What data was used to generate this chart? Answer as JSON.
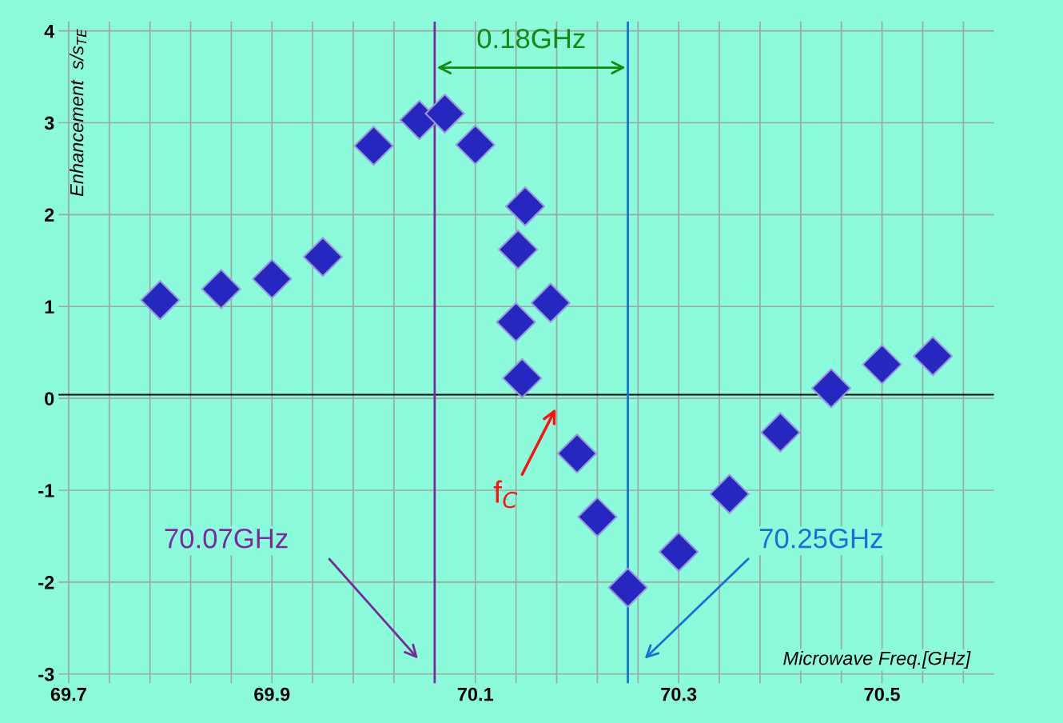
{
  "chart_data": {
    "type": "scatter",
    "xlabel": "Microwave Freq.[GHz]",
    "ylabel": "Enhancement  s/s$_{TE}$",
    "x": [
      69.79,
      69.85,
      69.9,
      69.95,
      70.0,
      70.045,
      70.07,
      70.1,
      70.149,
      70.142,
      70.174,
      70.14,
      70.146,
      70.2,
      70.22,
      70.25,
      70.3,
      70.35,
      70.4,
      70.45,
      70.5,
      70.55
    ],
    "series": [
      {
        "color": "#2626c0",
        "values": [
          1.07,
          1.19,
          1.3,
          1.54,
          2.75,
          3.03,
          3.1,
          2.76,
          2.09,
          1.62,
          1.04,
          0.83,
          0.22,
          -0.6,
          -1.29,
          -2.06,
          -1.67,
          -1.04,
          -0.37,
          0.11,
          0.37,
          0.46
        ]
      }
    ],
    "marker": "diamond",
    "grid": true,
    "xlim": [
      69.69,
      70.61
    ],
    "ylim": [
      -3.1,
      4.1
    ],
    "xticks": [
      69.7,
      {
        "value": 69.74,
        "label": null
      },
      {
        "value": 69.78,
        "label": null
      },
      {
        "value": 69.82,
        "label": null
      },
      {
        "value": 69.86,
        "label": null
      },
      69.9,
      {
        "value": 69.94,
        "label": null
      },
      {
        "value": 69.98,
        "label": null
      },
      {
        "value": 70.02,
        "label": null
      },
      {
        "value": 70.06,
        "label": null
      },
      70.1,
      {
        "value": 70.14,
        "label": null
      },
      {
        "value": 70.18,
        "label": null
      },
      {
        "value": 70.22,
        "label": null
      },
      {
        "value": 70.26,
        "label": null
      },
      70.3,
      {
        "value": 70.34,
        "label": null
      },
      {
        "value": 70.38,
        "label": null
      },
      {
        "value": 70.42,
        "label": null
      },
      {
        "value": 70.46,
        "label": null
      },
      70.5,
      {
        "value": 70.54,
        "label": null
      },
      {
        "value": 70.58,
        "label": null
      }
    ],
    "yticks": [
      -3,
      -2,
      -1,
      0,
      1,
      2,
      3,
      4
    ],
    "ref_lines": [
      {
        "axis": "y",
        "value": 0.04,
        "color": "#000000"
      },
      {
        "axis": "x",
        "value": 70.06,
        "label": "70.07GHz",
        "color": "#7b2a9a"
      },
      {
        "axis": "x",
        "value": 70.25,
        "label": "70.25GHz",
        "color": "#1a6fd6"
      }
    ],
    "annotations": [
      "0.18GHz",
      "f$_{C}$"
    ]
  }
}
